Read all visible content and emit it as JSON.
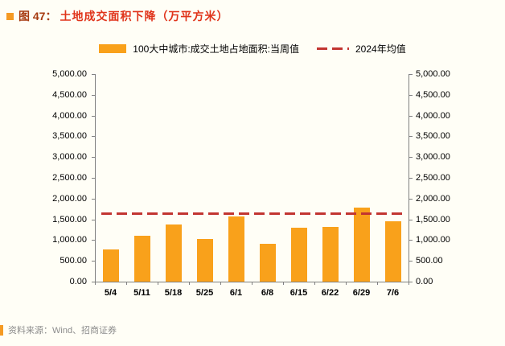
{
  "header": {
    "prefix": "图 47：",
    "title": "土地成交面积下降（万平方米）"
  },
  "legend": {
    "bar_label": "100大中城市:成交土地占地面积:当周值",
    "line_label": "2024年均值"
  },
  "chart_data": {
    "type": "bar",
    "categories": [
      "5/4",
      "5/11",
      "5/18",
      "5/25",
      "6/1",
      "6/8",
      "6/15",
      "6/22",
      "6/29",
      "7/6"
    ],
    "values": [
      780,
      1100,
      1370,
      1030,
      1570,
      920,
      1290,
      1310,
      1790,
      1450
    ],
    "series_name": "100大中城市:成交土地占地面积:当周值",
    "average_line": {
      "label": "2024年均值",
      "value": 1650
    },
    "ylim": [
      0,
      5000
    ],
    "ytick_step": 500,
    "ytick_format": "thousands-2dp",
    "dual_axis": true,
    "grid": false,
    "legend_position": "top",
    "bar_color": "#F9A11B",
    "line_color": "#C23531",
    "axis_color": "#808080"
  },
  "footer": {
    "source": "资料来源：Wind、招商证券"
  }
}
